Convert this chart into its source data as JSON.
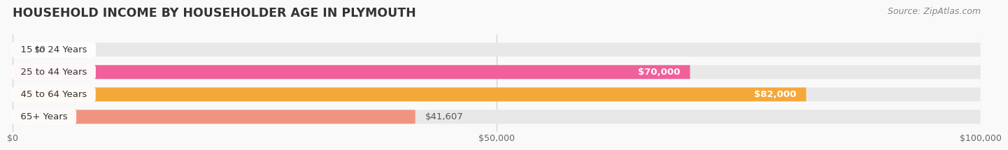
{
  "title": "HOUSEHOLD INCOME BY HOUSEHOLDER AGE IN PLYMOUTH",
  "source": "Source: ZipAtlas.com",
  "categories": [
    "15 to 24 Years",
    "25 to 44 Years",
    "45 to 64 Years",
    "65+ Years"
  ],
  "values": [
    0,
    70000,
    82000,
    41607
  ],
  "bar_colors": [
    "#a8b4df",
    "#f0609a",
    "#f5a83a",
    "#f09480"
  ],
  "bar_bg_color": "#e8e8e8",
  "xlim": [
    0,
    100000
  ],
  "xticks": [
    0,
    50000,
    100000
  ],
  "xtick_labels": [
    "$0",
    "$50,000",
    "$100,000"
  ],
  "value_labels": [
    "$0",
    "$70,000",
    "$82,000",
    "$41,607"
  ],
  "background_color": "#f9f9f9",
  "title_fontsize": 12.5,
  "label_fontsize": 9.5,
  "tick_fontsize": 9,
  "source_fontsize": 9
}
